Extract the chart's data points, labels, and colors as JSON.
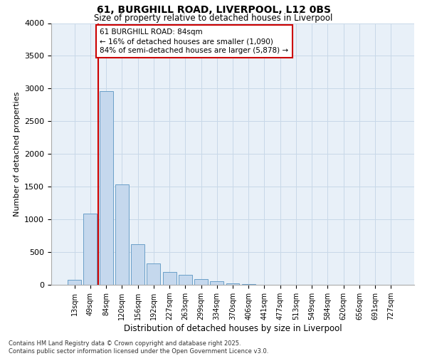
{
  "title_line1": "61, BURGHILL ROAD, LIVERPOOL, L12 0BS",
  "title_line2": "Size of property relative to detached houses in Liverpool",
  "xlabel": "Distribution of detached houses by size in Liverpool",
  "ylabel": "Number of detached properties",
  "categories": [
    "13sqm",
    "49sqm",
    "84sqm",
    "120sqm",
    "156sqm",
    "192sqm",
    "227sqm",
    "263sqm",
    "299sqm",
    "334sqm",
    "370sqm",
    "406sqm",
    "441sqm",
    "477sqm",
    "513sqm",
    "549sqm",
    "584sqm",
    "620sqm",
    "656sqm",
    "691sqm",
    "727sqm"
  ],
  "values": [
    75,
    1090,
    2960,
    1530,
    620,
    330,
    200,
    150,
    90,
    50,
    20,
    10,
    5,
    3,
    2,
    1,
    1,
    1,
    0,
    0,
    0
  ],
  "bar_color": "#c5d8ed",
  "bar_edge_color": "#6a9fc8",
  "vline_color": "#cc0000",
  "annotation_box_text": "61 BURGHILL ROAD: 84sqm\n← 16% of detached houses are smaller (1,090)\n84% of semi-detached houses are larger (5,878) →",
  "annotation_box_color": "#cc0000",
  "annotation_box_bg": "#ffffff",
  "grid_color": "#c8d8e8",
  "bg_color": "#e8f0f8",
  "ylim": [
    0,
    4000
  ],
  "yticks": [
    0,
    500,
    1000,
    1500,
    2000,
    2500,
    3000,
    3500,
    4000
  ],
  "footer_line1": "Contains HM Land Registry data © Crown copyright and database right 2025.",
  "footer_line2": "Contains public sector information licensed under the Open Government Licence v3.0."
}
